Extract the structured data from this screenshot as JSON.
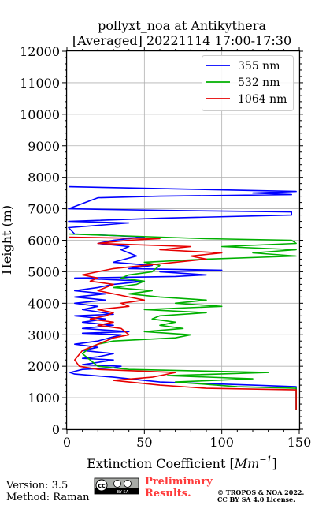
{
  "chart_data": {
    "type": "line",
    "title_line1": "pollyxt_noa at Antikythera",
    "title_line2": "[Averaged] 20221114 17:00-17:30",
    "xlabel": "Extinction Coefficient [",
    "xlabel_unit": "Mm",
    "xlabel_exp": "−1",
    "xlabel_end": "]",
    "ylabel": "Height (m)",
    "xlim": [
      0,
      150
    ],
    "ylim": [
      0,
      12000
    ],
    "x_ticks": [
      0,
      50,
      100,
      150
    ],
    "y_ticks": [
      0,
      1000,
      2000,
      3000,
      4000,
      5000,
      6000,
      7000,
      8000,
      9000,
      10000,
      11000,
      12000
    ],
    "grid": true,
    "legend_position": "top-right",
    "series": [
      {
        "name": "355 nm",
        "color": "#0000ff",
        "points": [
          [
            148,
            620
          ],
          [
            148,
            640
          ],
          [
            148,
            1350
          ],
          [
            120,
            1400
          ],
          [
            60,
            1500
          ],
          [
            30,
            1650
          ],
          [
            5,
            1750
          ],
          [
            2,
            1800
          ],
          [
            10,
            1900
          ],
          [
            30,
            1950
          ],
          [
            35,
            2000
          ],
          [
            10,
            2050
          ],
          [
            30,
            2200
          ],
          [
            10,
            2250
          ],
          [
            20,
            2300
          ],
          [
            30,
            2400
          ],
          [
            10,
            2500
          ],
          [
            20,
            2600
          ],
          [
            5,
            2700
          ],
          [
            20,
            2800
          ],
          [
            35,
            3000
          ],
          [
            10,
            3050
          ],
          [
            40,
            3100
          ],
          [
            10,
            3200
          ],
          [
            30,
            3300
          ],
          [
            10,
            3400
          ],
          [
            25,
            3500
          ],
          [
            5,
            3600
          ],
          [
            30,
            3650
          ],
          [
            10,
            3800
          ],
          [
            20,
            3900
          ],
          [
            5,
            4000
          ],
          [
            25,
            4100
          ],
          [
            5,
            4200
          ],
          [
            25,
            4300
          ],
          [
            5,
            4400
          ],
          [
            20,
            4500
          ],
          [
            30,
            4600
          ],
          [
            50,
            4700
          ],
          [
            5,
            4800
          ],
          [
            70,
            4850
          ],
          [
            90,
            4900
          ],
          [
            60,
            5000
          ],
          [
            100,
            5050
          ],
          [
            40,
            5100
          ],
          [
            55,
            5200
          ],
          [
            30,
            5300
          ],
          [
            45,
            5500
          ],
          [
            35,
            5700
          ],
          [
            40,
            5800
          ],
          [
            20,
            5900
          ],
          [
            30,
            6000
          ],
          [
            50,
            6100
          ],
          [
            30,
            6150
          ],
          [
            5,
            6200
          ],
          [
            1,
            6400
          ],
          [
            40,
            6550
          ],
          [
            1,
            6600
          ],
          [
            60,
            6700
          ],
          [
            145,
            6800
          ],
          [
            145,
            6900
          ],
          [
            60,
            6950
          ],
          [
            1,
            7000
          ],
          [
            20,
            7350
          ],
          [
            60,
            7400
          ],
          [
            145,
            7450
          ],
          [
            120,
            7500
          ],
          [
            148,
            7550
          ],
          [
            1,
            7700
          ]
        ]
      },
      {
        "name": "532 nm",
        "color": "#00b000",
        "points": [
          [
            148,
            610
          ],
          [
            148,
            630
          ],
          [
            148,
            1300
          ],
          [
            110,
            1350
          ],
          [
            70,
            1500
          ],
          [
            120,
            1600
          ],
          [
            65,
            1700
          ],
          [
            130,
            1800
          ],
          [
            40,
            1900
          ],
          [
            20,
            2000
          ],
          [
            15,
            2200
          ],
          [
            10,
            2400
          ],
          [
            15,
            2600
          ],
          [
            20,
            2700
          ],
          [
            30,
            2800
          ],
          [
            70,
            2900
          ],
          [
            80,
            3000
          ],
          [
            50,
            3100
          ],
          [
            75,
            3200
          ],
          [
            60,
            3300
          ],
          [
            70,
            3400
          ],
          [
            55,
            3500
          ],
          [
            60,
            3600
          ],
          [
            90,
            3700
          ],
          [
            50,
            3800
          ],
          [
            100,
            3900
          ],
          [
            70,
            4000
          ],
          [
            90,
            4100
          ],
          [
            60,
            4200
          ],
          [
            40,
            4300
          ],
          [
            55,
            4400
          ],
          [
            30,
            4500
          ],
          [
            45,
            4600
          ],
          [
            50,
            4700
          ],
          [
            35,
            4800
          ],
          [
            40,
            4900
          ],
          [
            55,
            5000
          ],
          [
            60,
            5200
          ],
          [
            50,
            5300
          ],
          [
            90,
            5400
          ],
          [
            148,
            5500
          ],
          [
            120,
            5600
          ],
          [
            148,
            5700
          ],
          [
            100,
            5800
          ],
          [
            148,
            5900
          ],
          [
            145,
            6000
          ],
          [
            90,
            6050
          ],
          [
            1,
            6200
          ]
        ]
      },
      {
        "name": "1064 nm",
        "color": "#e60000",
        "points": [
          [
            148,
            600
          ],
          [
            148,
            620
          ],
          [
            148,
            1250
          ],
          [
            90,
            1300
          ],
          [
            60,
            1400
          ],
          [
            30,
            1550
          ],
          [
            55,
            1650
          ],
          [
            70,
            1800
          ],
          [
            20,
            1900
          ],
          [
            8,
            2000
          ],
          [
            5,
            2200
          ],
          [
            10,
            2500
          ],
          [
            20,
            2700
          ],
          [
            30,
            2900
          ],
          [
            40,
            3000
          ],
          [
            35,
            3200
          ],
          [
            20,
            3300
          ],
          [
            30,
            3400
          ],
          [
            15,
            3500
          ],
          [
            25,
            3600
          ],
          [
            30,
            3700
          ],
          [
            20,
            3800
          ],
          [
            40,
            3900
          ],
          [
            35,
            4000
          ],
          [
            50,
            4100
          ],
          [
            40,
            4200
          ],
          [
            30,
            4300
          ],
          [
            20,
            4400
          ],
          [
            25,
            4500
          ],
          [
            30,
            4600
          ],
          [
            15,
            4700
          ],
          [
            20,
            4800
          ],
          [
            10,
            4900
          ],
          [
            20,
            5000
          ],
          [
            30,
            5100
          ],
          [
            50,
            5200
          ],
          [
            70,
            5300
          ],
          [
            90,
            5400
          ],
          [
            80,
            5500
          ],
          [
            100,
            5600
          ],
          [
            60,
            5700
          ],
          [
            80,
            5800
          ],
          [
            20,
            5900
          ],
          [
            40,
            6000
          ],
          [
            60,
            6050
          ],
          [
            1,
            6100
          ]
        ]
      }
    ]
  },
  "footer": {
    "version": "Version: 3.5",
    "method": "Method: Raman",
    "prelim_line1": "Preliminary",
    "prelim_line2": "Results.",
    "copyright_line1": "© TROPOS & NOA 2022.",
    "copyright_line2": "CC BY SA 4.0 License.",
    "license_badge": "cc",
    "license_badge_sub": "BY   SA"
  }
}
